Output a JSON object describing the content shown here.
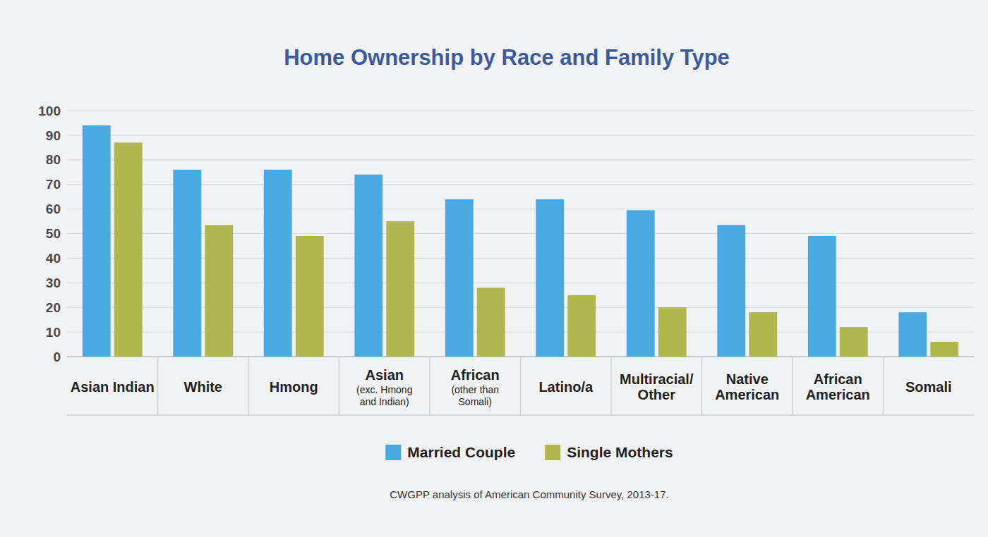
{
  "chart_data": {
    "type": "bar",
    "title": "Home Ownership by Race and Family Type",
    "source": "CWGPP analysis of American Community Survey, 2013-17.",
    "categories": [
      "Asian Indian",
      "White",
      "Hmong",
      "Asian (exc. Hmong and Indian)",
      "African (other than Somali)",
      "Latino/a",
      "Multiracial/Other",
      "Native American",
      "African American",
      "Somali"
    ],
    "series": [
      {
        "name": "Married Couple",
        "color": "#4aa9e0",
        "values": [
          94,
          76,
          76,
          74,
          64,
          64,
          59.5,
          53.5,
          49,
          18
        ]
      },
      {
        "name": "Single Mothers",
        "color": "#aeb84e",
        "values": [
          87,
          53.5,
          49,
          55,
          28,
          25,
          20,
          18,
          12,
          6
        ]
      }
    ],
    "ylim": [
      0,
      100
    ],
    "yticks": [
      0,
      10,
      20,
      30,
      40,
      50,
      60,
      70,
      80,
      90,
      100
    ],
    "grid": true,
    "legend": "bottom"
  }
}
